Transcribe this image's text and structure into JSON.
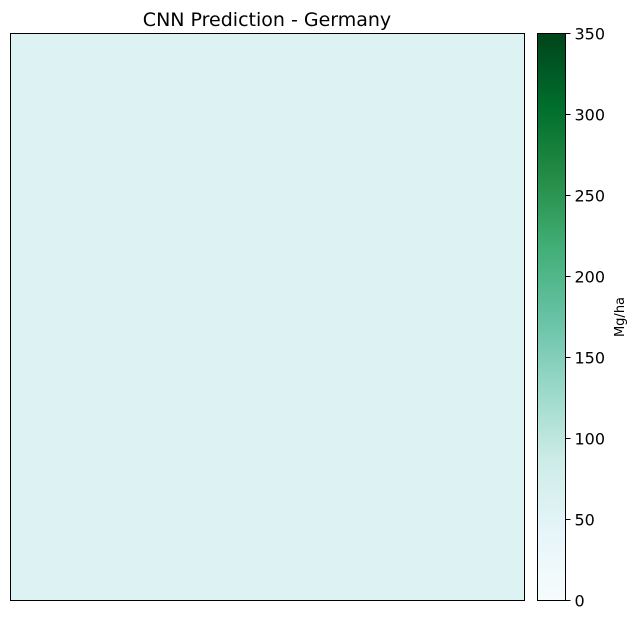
{
  "chart_data": {
    "type": "heatmap",
    "title": "CNN Prediction - Germany",
    "xlabel": "",
    "ylabel": "",
    "grid": false,
    "value": 58,
    "colorbar": {
      "label": "Mg/ha",
      "range": [
        0,
        350
      ],
      "ticks": [
        0,
        50,
        100,
        150,
        200,
        250,
        300,
        350
      ],
      "tick_labels": [
        "0",
        "50",
        "100",
        "150",
        "200",
        "250",
        "300",
        "350"
      ],
      "colormap": [
        "#f7fcfd",
        "#e5f5f9",
        "#ccece6",
        "#99d8c9",
        "#66c2a4",
        "#41ae76",
        "#238b45",
        "#006d2c",
        "#00441b"
      ]
    }
  }
}
